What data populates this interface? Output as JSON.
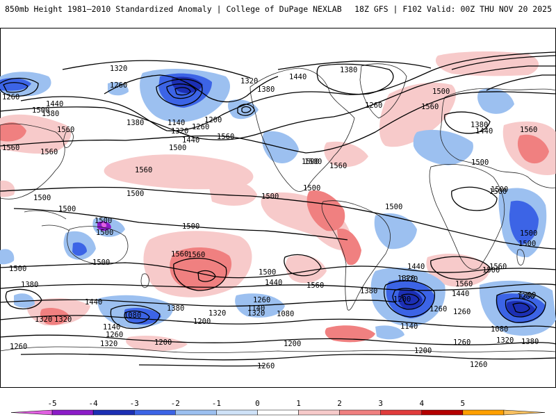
{
  "header": {
    "title": "850mb Height 1981–2010 Standardized Anomaly | College of DuPage NEXLAB",
    "run_info": "18Z GFS | F102 Valid: 00Z THU NOV 20 2025"
  },
  "colorbar": {
    "ticks": [
      "-5",
      "-4",
      "-3",
      "-2",
      "-1",
      "0",
      "1",
      "2",
      "3",
      "4",
      "5"
    ],
    "colors": [
      "#e060e0",
      "#8c1cc8",
      "#1c2fb4",
      "#3c64e6",
      "#9cc0f0",
      "#cfe2f8",
      "#ffffff",
      "#f7caca",
      "#f08080",
      "#e03c3c",
      "#b40000",
      "#ffa000",
      "#f8c060"
    ]
  },
  "contour_labels": [
    {
      "text": "1320"
    },
    {
      "text": "1260"
    },
    {
      "text": "1260"
    },
    {
      "text": "1440"
    },
    {
      "text": "1380"
    },
    {
      "text": "1320"
    },
    {
      "text": "1380"
    },
    {
      "text": "1440"
    },
    {
      "text": "1380"
    },
    {
      "text": "1500"
    },
    {
      "text": "1560"
    },
    {
      "text": "1260"
    },
    {
      "text": "1500"
    },
    {
      "text": "1560"
    },
    {
      "text": "1560"
    },
    {
      "text": "1560"
    },
    {
      "text": "1380"
    },
    {
      "text": "1140"
    },
    {
      "text": "1260"
    },
    {
      "text": "1200"
    },
    {
      "text": "1320"
    },
    {
      "text": "1560"
    },
    {
      "text": "1440"
    },
    {
      "text": "1500"
    },
    {
      "text": "1500"
    },
    {
      "text": "1560"
    },
    {
      "text": "1500"
    },
    {
      "text": "1560"
    },
    {
      "text": "1380"
    },
    {
      "text": "1440"
    },
    {
      "text": "1500"
    },
    {
      "text": "1560"
    },
    {
      "text": "1500"
    },
    {
      "text": "1500"
    },
    {
      "text": "1500"
    },
    {
      "text": "1500"
    },
    {
      "text": "1500"
    },
    {
      "text": "1500"
    },
    {
      "text": "1500"
    },
    {
      "text": "1500"
    },
    {
      "text": "1500"
    },
    {
      "text": "1500"
    },
    {
      "text": "1500"
    },
    {
      "text": "1500"
    },
    {
      "text": "1560"
    },
    {
      "text": "1500"
    },
    {
      "text": "1440"
    },
    {
      "text": "1380"
    },
    {
      "text": "1560"
    },
    {
      "text": "1440"
    },
    {
      "text": "1560"
    },
    {
      "text": "1380"
    },
    {
      "text": "1500"
    },
    {
      "text": "1320"
    },
    {
      "text": "1440"
    },
    {
      "text": "1560"
    },
    {
      "text": "1380"
    },
    {
      "text": "1320"
    },
    {
      "text": "1140"
    },
    {
      "text": "1080"
    },
    {
      "text": "1260"
    },
    {
      "text": "1200"
    },
    {
      "text": "1260"
    },
    {
      "text": "1320"
    },
    {
      "text": "1140"
    },
    {
      "text": "1080"
    },
    {
      "text": "1200"
    },
    {
      "text": "1320"
    },
    {
      "text": "1260"
    },
    {
      "text": "1200"
    },
    {
      "text": "1320"
    },
    {
      "text": "1140"
    },
    {
      "text": "1200"
    },
    {
      "text": "1200"
    },
    {
      "text": "1260"
    },
    {
      "text": "1320"
    },
    {
      "text": "1200"
    },
    {
      "text": "1260"
    },
    {
      "text": "1080"
    },
    {
      "text": "1200"
    },
    {
      "text": "1260"
    },
    {
      "text": "1380"
    },
    {
      "text": "1320"
    },
    {
      "text": "1260"
    },
    {
      "text": "1260"
    },
    {
      "text": "1500"
    },
    {
      "text": "1500"
    },
    {
      "text": "1440"
    },
    {
      "text": "1500"
    },
    {
      "text": "1560"
    },
    {
      "text": "1320"
    }
  ]
}
